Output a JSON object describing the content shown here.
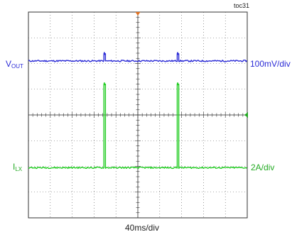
{
  "chart_data": {
    "type": "line",
    "tag": "toc31",
    "x_scale_label": "40ms/div",
    "x_divisions": 10,
    "y_divisions": 8,
    "colors": {
      "grid": "#555555",
      "vout": "#2b2bd6",
      "ilx": "#22cc22",
      "trigger": "#e07020",
      "marker": "#22aa22"
    },
    "series": [
      {
        "key": "vout",
        "name_main": "V",
        "name_sub": "OUT",
        "scale_label": "100mV/div",
        "baseline_div": 6.1,
        "pulse_height_div": 0.28,
        "pulse_x_div": [
          3.45,
          6.8
        ],
        "pulse_width_div": 0.07
      },
      {
        "key": "ilx",
        "name_main": "I",
        "name_sub": "LX",
        "scale_label": "2A/div",
        "baseline_div": 1.95,
        "pulse_height_div": 3.25,
        "pulse_x_div": [
          3.45,
          6.8
        ],
        "pulse_width_div": 0.07
      }
    ]
  }
}
